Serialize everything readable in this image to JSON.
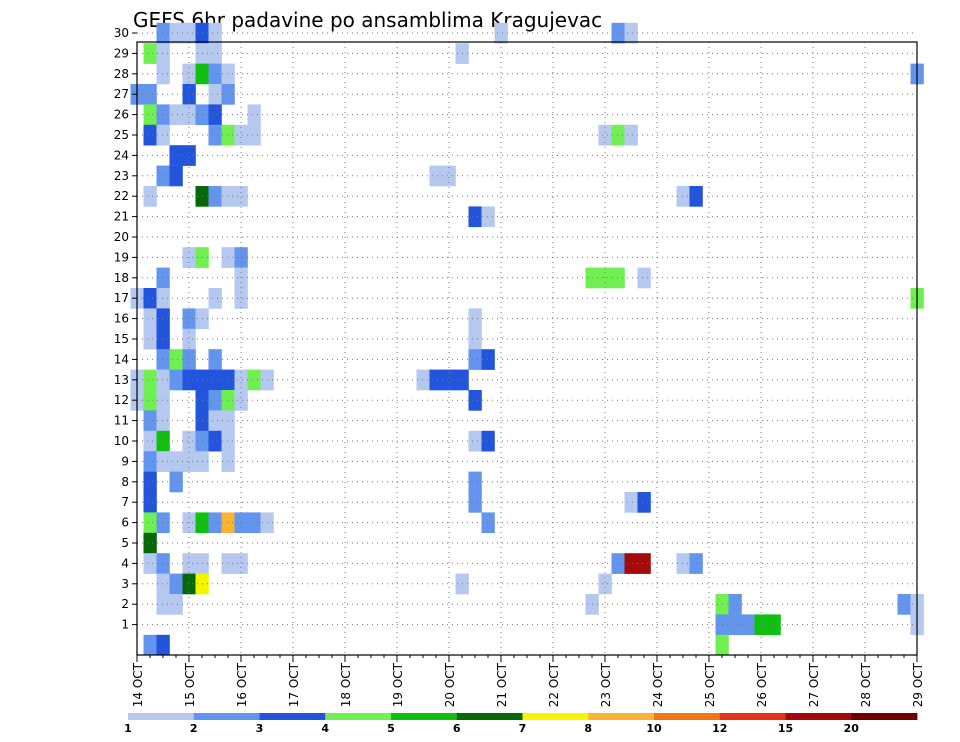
{
  "chart_data": {
    "type": "heatmap",
    "title": "GEFS 6hr padavine po ansamblima Kragujevac",
    "xlabel": "",
    "ylabel": "",
    "x_ticks": [
      "14 OCT",
      "15 OCT",
      "16 OCT",
      "17 OCT",
      "18 OCT",
      "19 OCT",
      "20 OCT",
      "21 OCT",
      "22 OCT",
      "23 OCT",
      "24 OCT",
      "25 OCT",
      "26 OCT",
      "27 OCT",
      "28 OCT",
      "29 OCT"
    ],
    "y_ticks": [
      "1",
      "2",
      "3",
      "4",
      "5",
      "6",
      "7",
      "8",
      "9",
      "10",
      "11",
      "12",
      "13",
      "14",
      "15",
      "16",
      "17",
      "18",
      "19",
      "20",
      "21",
      "22",
      "23",
      "24",
      "25",
      "26",
      "27",
      "28",
      "29",
      "30"
    ],
    "xlim": [
      0,
      60
    ],
    "ylim": [
      0,
      30
    ],
    "x_units": "6-hour steps from 14 OCT 00Z",
    "legend_ticks": [
      "1",
      "2",
      "3",
      "4",
      "5",
      "6",
      "7",
      "8",
      "10",
      "12",
      "15",
      "20"
    ],
    "legend_colors": [
      "#b4c8f0",
      "#6495ee",
      "#2355dc",
      "#70f050",
      "#10c010",
      "#066806",
      "#f5f500",
      "#fab432",
      "#f07814",
      "#e63214",
      "#a50a0a",
      "#6e0000"
    ],
    "cells": [
      [
        1,
        30,
        "#6495ee"
      ],
      [
        2,
        30,
        "#b4c8f0"
      ],
      [
        3,
        30,
        "#b4c8f0"
      ],
      [
        4,
        30,
        "#2355dc"
      ],
      [
        5,
        30,
        "#b4c8f0"
      ],
      [
        27,
        30,
        "#b4c8f0"
      ],
      [
        36,
        30,
        "#6495ee"
      ],
      [
        37,
        30,
        "#b4c8f0"
      ],
      [
        0,
        29,
        "#70f050"
      ],
      [
        1,
        29,
        "#b4c8f0"
      ],
      [
        4,
        29,
        "#b4c8f0"
      ],
      [
        5,
        29,
        "#b4c8f0"
      ],
      [
        24,
        29,
        "#b4c8f0"
      ],
      [
        1,
        28,
        "#b4c8f0"
      ],
      [
        3,
        28,
        "#b4c8f0"
      ],
      [
        4,
        28,
        "#10c010"
      ],
      [
        5,
        28,
        "#6495ee"
      ],
      [
        6,
        28,
        "#b4c8f0"
      ],
      [
        59,
        28,
        "#6495ee"
      ],
      [
        -1,
        27,
        "#6495ee"
      ],
      [
        0,
        27,
        "#6495ee"
      ],
      [
        3,
        27,
        "#2355dc"
      ],
      [
        5,
        27,
        "#b4c8f0"
      ],
      [
        6,
        27,
        "#6495ee"
      ],
      [
        0,
        26,
        "#70f050"
      ],
      [
        1,
        26,
        "#6495ee"
      ],
      [
        2,
        26,
        "#b4c8f0"
      ],
      [
        3,
        26,
        "#b4c8f0"
      ],
      [
        4,
        26,
        "#6495ee"
      ],
      [
        5,
        26,
        "#2355dc"
      ],
      [
        8,
        26,
        "#b4c8f0"
      ],
      [
        0,
        25,
        "#2355dc"
      ],
      [
        1,
        25,
        "#b4c8f0"
      ],
      [
        5,
        25,
        "#6495ee"
      ],
      [
        6,
        25,
        "#70f050"
      ],
      [
        7,
        25,
        "#b4c8f0"
      ],
      [
        8,
        25,
        "#b4c8f0"
      ],
      [
        35,
        25,
        "#b4c8f0"
      ],
      [
        36,
        25,
        "#70f050"
      ],
      [
        37,
        25,
        "#b4c8f0"
      ],
      [
        2,
        24,
        "#2355dc"
      ],
      [
        3,
        24,
        "#2355dc"
      ],
      [
        1,
        23,
        "#6495ee"
      ],
      [
        2,
        23,
        "#2355dc"
      ],
      [
        22,
        23,
        "#b4c8f0"
      ],
      [
        23,
        23,
        "#b4c8f0"
      ],
      [
        0,
        22,
        "#b4c8f0"
      ],
      [
        4,
        22,
        "#066806"
      ],
      [
        5,
        22,
        "#6495ee"
      ],
      [
        6,
        22,
        "#b4c8f0"
      ],
      [
        7,
        22,
        "#b4c8f0"
      ],
      [
        41,
        22,
        "#b4c8f0"
      ],
      [
        42,
        22,
        "#2355dc"
      ],
      [
        25,
        21,
        "#2355dc"
      ],
      [
        26,
        21,
        "#b4c8f0"
      ],
      [
        3,
        19,
        "#b4c8f0"
      ],
      [
        4,
        19,
        "#70f050"
      ],
      [
        6,
        19,
        "#b4c8f0"
      ],
      [
        7,
        19,
        "#6495ee"
      ],
      [
        1,
        18,
        "#6495ee"
      ],
      [
        7,
        18,
        "#b4c8f0"
      ],
      [
        34,
        18,
        "#70f050"
      ],
      [
        35,
        18,
        "#70f050"
      ],
      [
        36,
        18,
        "#70f050"
      ],
      [
        38,
        18,
        "#b4c8f0"
      ],
      [
        -1,
        17,
        "#b4c8f0"
      ],
      [
        0,
        17,
        "#2355dc"
      ],
      [
        1,
        17,
        "#b4c8f0"
      ],
      [
        5,
        17,
        "#b4c8f0"
      ],
      [
        7,
        17,
        "#b4c8f0"
      ],
      [
        59,
        17,
        "#70f050"
      ],
      [
        0,
        16,
        "#b4c8f0"
      ],
      [
        1,
        16,
        "#2355dc"
      ],
      [
        3,
        16,
        "#6495ee"
      ],
      [
        4,
        16,
        "#b4c8f0"
      ],
      [
        25,
        16,
        "#b4c8f0"
      ],
      [
        0,
        15,
        "#b4c8f0"
      ],
      [
        1,
        15,
        "#2355dc"
      ],
      [
        3,
        15,
        "#b4c8f0"
      ],
      [
        25,
        15,
        "#b4c8f0"
      ],
      [
        1,
        14,
        "#6495ee"
      ],
      [
        2,
        14,
        "#70f050"
      ],
      [
        3,
        14,
        "#6495ee"
      ],
      [
        5,
        14,
        "#6495ee"
      ],
      [
        25,
        14,
        "#6495ee"
      ],
      [
        26,
        14,
        "#2355dc"
      ],
      [
        -1,
        13,
        "#b4c8f0"
      ],
      [
        0,
        13,
        "#70f050"
      ],
      [
        1,
        13,
        "#b4c8f0"
      ],
      [
        2,
        13,
        "#6495ee"
      ],
      [
        3,
        13,
        "#2355dc"
      ],
      [
        4,
        13,
        "#2355dc"
      ],
      [
        5,
        13,
        "#2355dc"
      ],
      [
        6,
        13,
        "#2355dc"
      ],
      [
        7,
        13,
        "#b4c8f0"
      ],
      [
        8,
        13,
        "#70f050"
      ],
      [
        9,
        13,
        "#b4c8f0"
      ],
      [
        21,
        13,
        "#b4c8f0"
      ],
      [
        22,
        13,
        "#2355dc"
      ],
      [
        23,
        13,
        "#2355dc"
      ],
      [
        24,
        13,
        "#2355dc"
      ],
      [
        -1,
        12,
        "#b4c8f0"
      ],
      [
        0,
        12,
        "#70f050"
      ],
      [
        1,
        12,
        "#b4c8f0"
      ],
      [
        4,
        12,
        "#2355dc"
      ],
      [
        5,
        12,
        "#6495ee"
      ],
      [
        6,
        12,
        "#70f050"
      ],
      [
        7,
        12,
        "#b4c8f0"
      ],
      [
        25,
        12,
        "#2355dc"
      ],
      [
        0,
        11,
        "#6495ee"
      ],
      [
        1,
        11,
        "#b4c8f0"
      ],
      [
        4,
        11,
        "#2355dc"
      ],
      [
        5,
        11,
        "#b4c8f0"
      ],
      [
        6,
        11,
        "#b4c8f0"
      ],
      [
        0,
        10,
        "#b4c8f0"
      ],
      [
        1,
        10,
        "#10c010"
      ],
      [
        3,
        10,
        "#b4c8f0"
      ],
      [
        4,
        10,
        "#6495ee"
      ],
      [
        5,
        10,
        "#2355dc"
      ],
      [
        6,
        10,
        "#b4c8f0"
      ],
      [
        25,
        10,
        "#b4c8f0"
      ],
      [
        26,
        10,
        "#2355dc"
      ],
      [
        0,
        9,
        "#6495ee"
      ],
      [
        1,
        9,
        "#b4c8f0"
      ],
      [
        2,
        9,
        "#b4c8f0"
      ],
      [
        3,
        9,
        "#b4c8f0"
      ],
      [
        4,
        9,
        "#b4c8f0"
      ],
      [
        6,
        9,
        "#b4c8f0"
      ],
      [
        0,
        8,
        "#2355dc"
      ],
      [
        2,
        8,
        "#6495ee"
      ],
      [
        25,
        8,
        "#6495ee"
      ],
      [
        0,
        7,
        "#2355dc"
      ],
      [
        25,
        7,
        "#6495ee"
      ],
      [
        37,
        7,
        "#b4c8f0"
      ],
      [
        38,
        7,
        "#2355dc"
      ],
      [
        0,
        6,
        "#70f050"
      ],
      [
        1,
        6,
        "#6495ee"
      ],
      [
        3,
        6,
        "#b4c8f0"
      ],
      [
        4,
        6,
        "#10c010"
      ],
      [
        5,
        6,
        "#6495ee"
      ],
      [
        6,
        6,
        "#fab432"
      ],
      [
        7,
        6,
        "#6495ee"
      ],
      [
        8,
        6,
        "#6495ee"
      ],
      [
        9,
        6,
        "#b4c8f0"
      ],
      [
        26,
        6,
        "#6495ee"
      ],
      [
        0,
        5,
        "#066806"
      ],
      [
        0,
        4,
        "#b4c8f0"
      ],
      [
        1,
        4,
        "#6495ee"
      ],
      [
        3,
        4,
        "#b4c8f0"
      ],
      [
        4,
        4,
        "#b4c8f0"
      ],
      [
        6,
        4,
        "#b4c8f0"
      ],
      [
        7,
        4,
        "#b4c8f0"
      ],
      [
        36,
        4,
        "#6495ee"
      ],
      [
        37,
        4,
        "#a50a0a"
      ],
      [
        38,
        4,
        "#a50a0a"
      ],
      [
        41,
        4,
        "#b4c8f0"
      ],
      [
        42,
        4,
        "#6495ee"
      ],
      [
        1,
        3,
        "#b4c8f0"
      ],
      [
        2,
        3,
        "#6495ee"
      ],
      [
        3,
        3,
        "#066806"
      ],
      [
        4,
        3,
        "#f5f500"
      ],
      [
        24,
        3,
        "#b4c8f0"
      ],
      [
        35,
        3,
        "#b4c8f0"
      ],
      [
        1,
        2,
        "#b4c8f0"
      ],
      [
        2,
        2,
        "#b4c8f0"
      ],
      [
        34,
        2,
        "#b4c8f0"
      ],
      [
        44,
        2,
        "#70f050"
      ],
      [
        45,
        2,
        "#6495ee"
      ],
      [
        58,
        2,
        "#6495ee"
      ],
      [
        59,
        2,
        "#b4c8f0"
      ],
      [
        44,
        1,
        "#6495ee"
      ],
      [
        45,
        1,
        "#6495ee"
      ],
      [
        46,
        1,
        "#6495ee"
      ],
      [
        47,
        1,
        "#10c010"
      ],
      [
        48,
        1,
        "#10c010"
      ],
      [
        59,
        1,
        "#b4c8f0"
      ],
      [
        0,
        0,
        "#6495ee"
      ],
      [
        1,
        0,
        "#2355dc"
      ],
      [
        44,
        0,
        "#70f050"
      ]
    ]
  }
}
